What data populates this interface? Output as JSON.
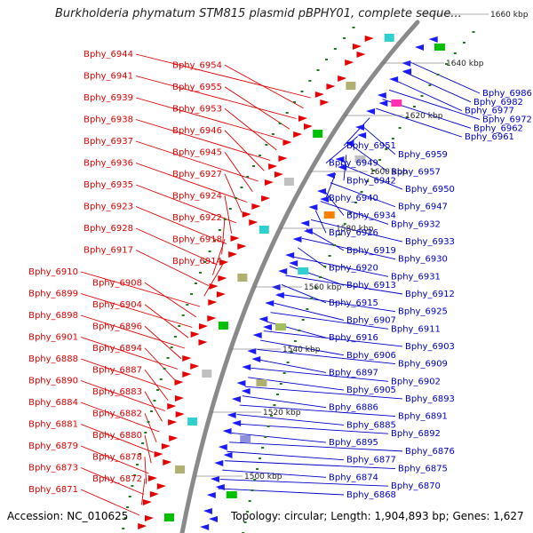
{
  "title": "Burkholderia phymatum STM815 plasmid pBPHY01, complete seque...",
  "footer": {
    "accession": "Accession: NC_010625",
    "summary": "Topology: circular; Length: 1,904,893 bp; Genes: 1,627"
  },
  "colors": {
    "forward_genes": "#e60000",
    "reverse_genes": "#1a1aff",
    "backbone": "#8a8a8a",
    "gc_dots": "#1f7a1f",
    "left_labels": "#e00000",
    "right_labels": "#0000c8"
  },
  "scale_ticks": [
    "1500 kbp",
    "1520 kbp",
    "1540 kbp",
    "1560 kbp",
    "1580 kbp",
    "1600 kbp",
    "1620 kbp",
    "1640 kbp",
    "1660 kbp"
  ],
  "left_labels": [
    "Bphy_6944",
    "Bphy_6954",
    "Bphy_6941",
    "Bphy_6955",
    "Bphy_6939",
    "Bphy_6953",
    "Bphy_6938",
    "Bphy_6946",
    "Bphy_6937",
    "Bphy_6945",
    "Bphy_6936",
    "Bphy_6927",
    "Bphy_6935",
    "Bphy_6924",
    "Bphy_6923",
    "Bphy_6922",
    "Bphy_6928",
    "Bphy_6918",
    "Bphy_6917",
    "Bphy_6914",
    "Bphy_6910",
    "Bphy_6908",
    "Bphy_6899",
    "Bphy_6904",
    "Bphy_6898",
    "Bphy_6896",
    "Bphy_6901",
    "Bphy_6894",
    "Bphy_6888",
    "Bphy_6887",
    "Bphy_6890",
    "Bphy_6883",
    "Bphy_6884",
    "Bphy_6882",
    "Bphy_6881",
    "Bphy_6880",
    "Bphy_6879",
    "Bphy_6878",
    "Bphy_6873",
    "Bphy_6872",
    "Bphy_6871"
  ],
  "right_labels": [
    "Bphy_6986",
    "Bphy_6982",
    "Bphy_6977",
    "Bphy_6972",
    "Bphy_6962",
    "Bphy_6961",
    "Bphy_6951",
    "Bphy_6959",
    "Bphy_6949",
    "Bphy_6957",
    "Bphy_6942",
    "Bphy_6950",
    "Bphy_6940",
    "Bphy_6947",
    "Bphy_6934",
    "Bphy_6932",
    "Bphy_6926",
    "Bphy_6933",
    "Bphy_6919",
    "Bphy_6930",
    "Bphy_6920",
    "Bphy_6931",
    "Bphy_6913",
    "Bphy_6912",
    "Bphy_6915",
    "Bphy_6925",
    "Bphy_6907",
    "Bphy_6911",
    "Bphy_6916",
    "Bphy_6903",
    "Bphy_6906",
    "Bphy_6909",
    "Bphy_6897",
    "Bphy_6902",
    "Bphy_6905",
    "Bphy_6893",
    "Bphy_6886",
    "Bphy_6891",
    "Bphy_6885",
    "Bphy_6892",
    "Bphy_6895",
    "Bphy_6876",
    "Bphy_6877",
    "Bphy_6875",
    "Bphy_6874",
    "Bphy_6870",
    "Bphy_6868"
  ]
}
